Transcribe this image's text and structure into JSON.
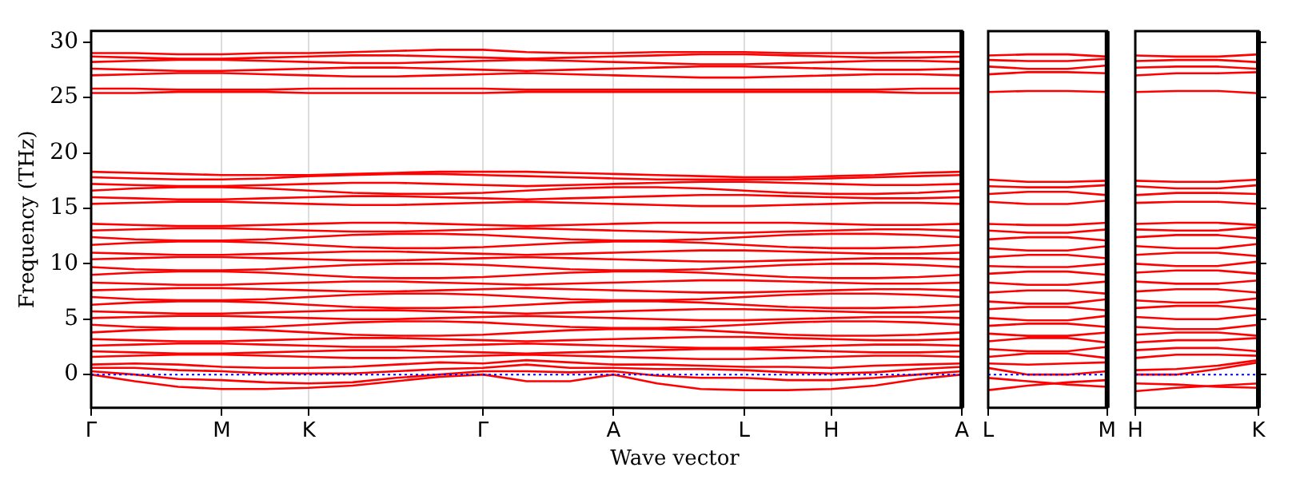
{
  "chart_data": [
    {
      "type": "line",
      "ylabel": "Frequency (THz)",
      "xlabel": "Wave vector",
      "grid": "x",
      "categories": [
        "Γ",
        null,
        null,
        "M",
        null,
        "K",
        null,
        null,
        null,
        "Γ",
        null,
        null,
        "A",
        null,
        null,
        "L",
        null,
        "H",
        null,
        null,
        "A"
      ],
      "ylim": [
        -3,
        31
      ],
      "yticks": [
        0,
        5,
        10,
        15,
        20,
        25,
        30
      ],
      "ref_lines": [
        {
          "axis": "y",
          "value": 0,
          "color": "#0000ff",
          "line_style": "dotted"
        }
      ],
      "series": [
        {
          "color": "#ff0000",
          "values": [
            0,
            -0.6,
            -1.1,
            -1.3,
            -1.3,
            -1.2,
            -1.0,
            -0.6,
            -0.2,
            0,
            -0.6,
            -0.6,
            0,
            -0.8,
            -1.3,
            -1.4,
            -1.4,
            -1.3,
            -1.0,
            -0.4,
            0
          ]
        },
        {
          "color": "#ff0000",
          "values": [
            0.3,
            0,
            -0.4,
            -0.5,
            -0.7,
            -0.8,
            -0.7,
            -0.3,
            0,
            0.3,
            0.3,
            0.2,
            0.3,
            -0.1,
            -0.3,
            -0.3,
            -0.5,
            -0.5,
            -0.3,
            0,
            0.3
          ]
        },
        {
          "color": "#ff0000",
          "values": [
            0.6,
            0.6,
            0.4,
            0.3,
            0.1,
            0.1,
            0.1,
            0.3,
            0.5,
            0.6,
            0.9,
            0.6,
            0.6,
            0.5,
            0.5,
            0.4,
            0.2,
            0.1,
            0.2,
            0.5,
            0.7
          ]
        },
        {
          "color": "#ff0000",
          "values": [
            0.9,
            1.0,
            0.9,
            0.7,
            0.6,
            0.6,
            0.7,
            0.9,
            1.1,
            1.0,
            1.3,
            1.1,
            0.9,
            0.9,
            0.8,
            0.7,
            0.7,
            0.6,
            0.8,
            0.9,
            1.0
          ]
        },
        {
          "color": "#ff0000",
          "values": [
            1.6,
            1.7,
            1.8,
            1.8,
            1.7,
            1.6,
            1.5,
            1.5,
            1.6,
            1.7,
            1.8,
            1.7,
            1.6,
            1.5,
            1.4,
            1.4,
            1.5,
            1.6,
            1.7,
            1.7,
            1.6
          ]
        },
        {
          "color": "#ff0000",
          "values": [
            2.1,
            2.0,
            1.9,
            1.9,
            2.0,
            2.1,
            2.2,
            2.2,
            2.1,
            2.0,
            1.9,
            2.0,
            2.1,
            2.2,
            2.3,
            2.3,
            2.2,
            2.1,
            2.0,
            2.0,
            2.1
          ]
        },
        {
          "color": "#ff0000",
          "values": [
            2.6,
            2.7,
            2.8,
            2.8,
            2.7,
            2.6,
            2.5,
            2.5,
            2.6,
            2.7,
            2.8,
            2.7,
            2.6,
            2.5,
            2.4,
            2.4,
            2.5,
            2.6,
            2.7,
            2.7,
            2.6
          ]
        },
        {
          "color": "#ff0000",
          "values": [
            3.2,
            3.1,
            3.0,
            3.0,
            3.1,
            3.2,
            3.3,
            3.3,
            3.2,
            3.1,
            3.0,
            3.1,
            3.2,
            3.3,
            3.4,
            3.4,
            3.3,
            3.2,
            3.1,
            3.1,
            3.2
          ]
        },
        {
          "color": "#ff0000",
          "values": [
            3.8,
            4.0,
            4.1,
            4.1,
            4.0,
            3.8,
            3.6,
            3.5,
            3.5,
            3.6,
            3.8,
            4.0,
            4.1,
            4.1,
            4.0,
            3.8,
            3.6,
            3.5,
            3.5,
            3.6,
            3.8
          ]
        },
        {
          "color": "#ff0000",
          "values": [
            4.5,
            4.3,
            4.2,
            4.2,
            4.3,
            4.5,
            4.7,
            4.8,
            4.8,
            4.7,
            4.5,
            4.3,
            4.2,
            4.2,
            4.3,
            4.5,
            4.7,
            4.8,
            4.8,
            4.7,
            4.5
          ]
        },
        {
          "color": "#ff0000",
          "values": [
            5.1,
            5.2,
            5.3,
            5.3,
            5.2,
            5.1,
            5.0,
            5.0,
            5.1,
            5.2,
            5.3,
            5.2,
            5.1,
            5.0,
            4.9,
            4.9,
            5.0,
            5.1,
            5.2,
            5.2,
            5.1
          ]
        },
        {
          "color": "#ff0000",
          "values": [
            5.7,
            5.6,
            5.5,
            5.5,
            5.6,
            5.7,
            5.8,
            5.8,
            5.7,
            5.6,
            5.5,
            5.6,
            5.7,
            5.8,
            5.9,
            5.9,
            5.8,
            5.7,
            5.6,
            5.6,
            5.7
          ]
        },
        {
          "color": "#ff0000",
          "values": [
            6.3,
            6.5,
            6.6,
            6.6,
            6.5,
            6.3,
            6.1,
            6.0,
            6.0,
            6.1,
            6.3,
            6.5,
            6.6,
            6.6,
            6.5,
            6.3,
            6.1,
            6.0,
            6.0,
            6.1,
            6.3
          ]
        },
        {
          "color": "#ff0000",
          "values": [
            7.0,
            6.8,
            6.7,
            6.7,
            6.8,
            7.0,
            7.2,
            7.3,
            7.3,
            7.2,
            7.0,
            6.8,
            6.7,
            6.7,
            6.8,
            7.0,
            7.2,
            7.3,
            7.3,
            7.2,
            7.0
          ]
        },
        {
          "color": "#ff0000",
          "values": [
            7.6,
            7.7,
            7.8,
            7.8,
            7.7,
            7.6,
            7.5,
            7.5,
            7.6,
            7.7,
            7.8,
            7.7,
            7.6,
            7.5,
            7.4,
            7.4,
            7.5,
            7.6,
            7.7,
            7.7,
            7.6
          ]
        },
        {
          "color": "#ff0000",
          "values": [
            8.3,
            8.2,
            8.1,
            8.1,
            8.2,
            8.3,
            8.4,
            8.4,
            8.3,
            8.2,
            8.1,
            8.2,
            8.3,
            8.4,
            8.5,
            8.5,
            8.4,
            8.3,
            8.2,
            8.2,
            8.3
          ]
        },
        {
          "color": "#ff0000",
          "values": [
            9.0,
            9.2,
            9.3,
            9.3,
            9.2,
            9.0,
            8.8,
            8.7,
            8.7,
            8.8,
            9.0,
            9.2,
            9.3,
            9.3,
            9.2,
            9.0,
            8.8,
            8.7,
            8.7,
            8.8,
            9.0
          ]
        },
        {
          "color": "#ff0000",
          "values": [
            9.7,
            9.5,
            9.4,
            9.4,
            9.5,
            9.7,
            9.9,
            10.0,
            10.0,
            9.9,
            9.7,
            9.5,
            9.4,
            9.4,
            9.5,
            9.7,
            9.9,
            10.0,
            10.0,
            9.9,
            9.7
          ]
        },
        {
          "color": "#ff0000",
          "values": [
            10.4,
            10.5,
            10.6,
            10.6,
            10.5,
            10.4,
            10.3,
            10.3,
            10.4,
            10.5,
            10.6,
            10.5,
            10.4,
            10.3,
            10.2,
            10.2,
            10.3,
            10.4,
            10.5,
            10.5,
            10.4
          ]
        },
        {
          "color": "#ff0000",
          "values": [
            11.0,
            10.9,
            10.8,
            10.8,
            10.9,
            11.0,
            11.1,
            11.1,
            11.0,
            10.9,
            10.8,
            10.9,
            11.0,
            11.1,
            11.2,
            11.2,
            11.1,
            11.0,
            10.9,
            10.9,
            11.0
          ]
        },
        {
          "color": "#ff0000",
          "values": [
            11.7,
            11.9,
            12.0,
            12.0,
            11.9,
            11.7,
            11.5,
            11.4,
            11.4,
            11.5,
            11.7,
            11.9,
            12.0,
            12.0,
            11.9,
            11.7,
            11.5,
            11.4,
            11.4,
            11.5,
            11.7
          ]
        },
        {
          "color": "#ff0000",
          "values": [
            12.4,
            12.2,
            12.1,
            12.1,
            12.2,
            12.4,
            12.6,
            12.7,
            12.7,
            12.6,
            12.4,
            12.2,
            12.1,
            12.1,
            12.2,
            12.4,
            12.6,
            12.7,
            12.7,
            12.6,
            12.4
          ]
        },
        {
          "color": "#ff0000",
          "values": [
            13.0,
            13.1,
            13.2,
            13.2,
            13.1,
            13.0,
            12.9,
            12.9,
            13.0,
            13.1,
            13.2,
            13.1,
            13.0,
            12.9,
            12.8,
            12.8,
            12.9,
            13.0,
            13.1,
            13.1,
            13.0
          ]
        },
        {
          "color": "#ff0000",
          "values": [
            13.6,
            13.5,
            13.4,
            13.4,
            13.5,
            13.6,
            13.7,
            13.7,
            13.6,
            13.5,
            13.4,
            13.5,
            13.6,
            13.7,
            13.7,
            13.7,
            13.7,
            13.6,
            13.5,
            13.5,
            13.6
          ]
        },
        {
          "color": "#ff0000",
          "values": [
            15.4,
            15.5,
            15.6,
            15.6,
            15.5,
            15.4,
            15.3,
            15.3,
            15.4,
            15.5,
            15.6,
            15.5,
            15.4,
            15.3,
            15.2,
            15.2,
            15.3,
            15.4,
            15.5,
            15.5,
            15.4
          ]
        },
        {
          "color": "#ff0000",
          "values": [
            16.0,
            15.9,
            15.8,
            15.8,
            15.9,
            16.0,
            16.1,
            16.1,
            16.0,
            15.9,
            15.8,
            15.9,
            16.0,
            16.1,
            16.2,
            16.2,
            16.1,
            16.0,
            15.9,
            15.9,
            16.0
          ]
        },
        {
          "color": "#ff0000",
          "values": [
            16.6,
            16.8,
            16.9,
            16.9,
            16.8,
            16.6,
            16.4,
            16.3,
            16.3,
            16.4,
            16.6,
            16.8,
            16.9,
            16.9,
            16.8,
            16.6,
            16.4,
            16.3,
            16.3,
            16.4,
            16.6
          ]
        },
        {
          "color": "#ff0000",
          "values": [
            17.2,
            17.1,
            17.0,
            17.0,
            17.1,
            17.2,
            17.3,
            17.3,
            17.2,
            17.1,
            17.0,
            17.1,
            17.2,
            17.3,
            17.4,
            17.4,
            17.3,
            17.2,
            17.1,
            17.1,
            17.2
          ]
        },
        {
          "color": "#ff0000",
          "values": [
            17.8,
            17.7,
            17.6,
            17.6,
            17.7,
            17.9,
            18.0,
            18.1,
            18.1,
            18.0,
            17.9,
            17.8,
            17.7,
            17.6,
            17.6,
            17.6,
            17.6,
            17.7,
            17.8,
            17.9,
            18.0
          ]
        },
        {
          "color": "#ff0000",
          "values": [
            18.3,
            18.2,
            18.1,
            18.0,
            18.0,
            18.0,
            18.1,
            18.2,
            18.3,
            18.3,
            18.3,
            18.2,
            18.1,
            18.0,
            17.9,
            17.8,
            17.8,
            17.9,
            18.0,
            18.2,
            18.3
          ]
        },
        {
          "color": "#ff0000",
          "values": [
            25.4,
            25.4,
            25.5,
            25.5,
            25.5,
            25.4,
            25.4,
            25.4,
            25.4,
            25.4,
            25.5,
            25.5,
            25.5,
            25.5,
            25.5,
            25.5,
            25.5,
            25.5,
            25.5,
            25.4,
            25.4
          ]
        },
        {
          "color": "#ff0000",
          "values": [
            25.8,
            25.8,
            25.7,
            25.7,
            25.7,
            25.8,
            25.8,
            25.8,
            25.8,
            25.8,
            25.7,
            25.7,
            25.7,
            25.7,
            25.7,
            25.7,
            25.7,
            25.7,
            25.7,
            25.8,
            25.8
          ]
        },
        {
          "color": "#ff0000",
          "values": [
            27.0,
            27.1,
            27.2,
            27.2,
            27.1,
            27.0,
            26.9,
            26.9,
            27.0,
            27.1,
            27.2,
            27.1,
            27.0,
            26.9,
            26.8,
            26.8,
            26.9,
            27.0,
            27.1,
            27.1,
            27.0
          ]
        },
        {
          "color": "#ff0000",
          "values": [
            27.6,
            27.5,
            27.4,
            27.4,
            27.5,
            27.6,
            27.7,
            27.7,
            27.6,
            27.5,
            27.4,
            27.5,
            27.6,
            27.7,
            27.8,
            27.8,
            27.7,
            27.6,
            27.5,
            27.5,
            27.6
          ]
        },
        {
          "color": "#ff0000",
          "values": [
            28.2,
            28.3,
            28.4,
            28.4,
            28.3,
            28.2,
            28.1,
            28.1,
            28.2,
            28.3,
            28.4,
            28.3,
            28.2,
            28.1,
            28.0,
            28.0,
            28.1,
            28.2,
            28.3,
            28.3,
            28.2
          ]
        },
        {
          "color": "#ff0000",
          "values": [
            28.7,
            28.6,
            28.5,
            28.5,
            28.6,
            28.7,
            28.8,
            28.8,
            28.7,
            28.6,
            28.5,
            28.6,
            28.7,
            28.8,
            28.9,
            28.9,
            28.8,
            28.7,
            28.6,
            28.6,
            28.7
          ]
        },
        {
          "color": "#ff0000",
          "values": [
            29.0,
            29.0,
            28.9,
            28.9,
            29.0,
            29.0,
            29.1,
            29.2,
            29.3,
            29.3,
            29.1,
            29.0,
            29.0,
            29.1,
            29.1,
            29.1,
            29.0,
            29.0,
            29.0,
            29.1,
            29.1
          ]
        }
      ]
    },
    {
      "type": "line",
      "tick_labels": "x",
      "categories": [
        "L",
        null,
        null,
        "M"
      ],
      "ylim": [
        -3,
        31
      ],
      "yticks": [
        0,
        5,
        10,
        15,
        20,
        25,
        30
      ],
      "ref_lines": [
        {
          "axis": "y",
          "value": 0,
          "color": "#0000ff",
          "line_style": "dotted"
        }
      ],
      "series": [
        {
          "color": "#ff0000",
          "values": [
            -1.4,
            -1.0,
            -0.7,
            -0.5
          ]
        },
        {
          "color": "#ff0000",
          "values": [
            -0.3,
            -0.6,
            -0.9,
            -1.1
          ]
        },
        {
          "color": "#ff0000",
          "values": [
            0.6,
            0,
            0,
            0.3
          ]
        },
        {
          "color": "#ff0000",
          "values": [
            1.0,
            0.9,
            1.0,
            1.1
          ]
        },
        {
          "color": "#ff0000",
          "values": [
            1.6,
            1.9,
            1.9,
            1.5
          ]
        },
        {
          "color": "#ff0000",
          "values": [
            2.3,
            2.1,
            2.1,
            2.5
          ]
        },
        {
          "color": "#ff0000",
          "values": [
            3.0,
            3.3,
            3.3,
            2.9
          ]
        },
        {
          "color": "#ff0000",
          "values": [
            3.7,
            3.5,
            3.5,
            3.8
          ]
        },
        {
          "color": "#ff0000",
          "values": [
            4.4,
            4.6,
            4.6,
            4.3
          ]
        },
        {
          "color": "#ff0000",
          "values": [
            5.1,
            4.9,
            4.9,
            5.3
          ]
        },
        {
          "color": "#ff0000",
          "values": [
            5.9,
            6.1,
            6.1,
            5.8
          ]
        },
        {
          "color": "#ff0000",
          "values": [
            6.6,
            6.4,
            6.4,
            6.8
          ]
        },
        {
          "color": "#ff0000",
          "values": [
            7.4,
            7.6,
            7.6,
            7.3
          ]
        },
        {
          "color": "#ff0000",
          "values": [
            8.3,
            8.1,
            8.1,
            8.4
          ]
        },
        {
          "color": "#ff0000",
          "values": [
            9.1,
            9.3,
            9.3,
            9.0
          ]
        },
        {
          "color": "#ff0000",
          "values": [
            9.8,
            9.7,
            9.7,
            10.0
          ]
        },
        {
          "color": "#ff0000",
          "values": [
            10.6,
            10.8,
            10.8,
            10.5
          ]
        },
        {
          "color": "#ff0000",
          "values": [
            11.4,
            11.2,
            11.2,
            11.6
          ]
        },
        {
          "color": "#ff0000",
          "values": [
            12.2,
            12.4,
            12.4,
            12.1
          ]
        },
        {
          "color": "#ff0000",
          "values": [
            13.0,
            12.8,
            12.8,
            13.1
          ]
        },
        {
          "color": "#ff0000",
          "values": [
            13.6,
            13.5,
            13.5,
            13.7
          ]
        },
        {
          "color": "#ff0000",
          "values": [
            15.6,
            15.4,
            15.4,
            15.7
          ]
        },
        {
          "color": "#ff0000",
          "values": [
            16.3,
            16.5,
            16.5,
            16.2
          ]
        },
        {
          "color": "#ff0000",
          "values": [
            17.0,
            16.9,
            16.9,
            17.1
          ]
        },
        {
          "color": "#ff0000",
          "values": [
            17.6,
            17.4,
            17.4,
            17.5
          ]
        },
        {
          "color": "#ff0000",
          "values": [
            25.5,
            25.6,
            25.6,
            25.5
          ]
        },
        {
          "color": "#ff0000",
          "values": [
            27.1,
            27.3,
            27.3,
            27.2
          ]
        },
        {
          "color": "#ff0000",
          "values": [
            27.8,
            27.6,
            27.6,
            27.9
          ]
        },
        {
          "color": "#ff0000",
          "values": [
            28.4,
            28.3,
            28.3,
            28.5
          ]
        },
        {
          "color": "#ff0000",
          "values": [
            28.8,
            28.9,
            28.9,
            28.7
          ]
        }
      ]
    },
    {
      "type": "line",
      "tick_labels": "x",
      "categories": [
        "H",
        null,
        null,
        "K"
      ],
      "ylim": [
        -3,
        31
      ],
      "yticks": [
        0,
        5,
        10,
        15,
        20,
        25,
        30
      ],
      "ref_lines": [
        {
          "axis": "y",
          "value": 0,
          "color": "#0000ff",
          "line_style": "dotted"
        }
      ],
      "series": [
        {
          "color": "#ff0000",
          "values": [
            -1.5,
            -1.2,
            -1.0,
            -0.8
          ]
        },
        {
          "color": "#ff0000",
          "values": [
            -0.8,
            -0.9,
            -1.1,
            -1.2
          ]
        },
        {
          "color": "#ff0000",
          "values": [
            0,
            0,
            0.5,
            1.1
          ]
        },
        {
          "color": "#ff0000",
          "values": [
            0.4,
            0.5,
            0.8,
            1.3
          ]
        },
        {
          "color": "#ff0000",
          "values": [
            1.5,
            1.8,
            1.8,
            1.7
          ]
        },
        {
          "color": "#ff0000",
          "values": [
            2.2,
            2.4,
            2.4,
            2.1
          ]
        },
        {
          "color": "#ff0000",
          "values": [
            2.9,
            3.1,
            3.1,
            3.3
          ]
        },
        {
          "color": "#ff0000",
          "values": [
            3.6,
            3.8,
            3.8,
            3.5
          ]
        },
        {
          "color": "#ff0000",
          "values": [
            4.3,
            4.1,
            4.1,
            4.5
          ]
        },
        {
          "color": "#ff0000",
          "values": [
            5.2,
            5.0,
            5.0,
            5.4
          ]
        },
        {
          "color": "#ff0000",
          "values": [
            6.0,
            6.2,
            6.2,
            5.9
          ]
        },
        {
          "color": "#ff0000",
          "values": [
            6.7,
            6.5,
            6.5,
            6.9
          ]
        },
        {
          "color": "#ff0000",
          "values": [
            7.5,
            7.7,
            7.7,
            7.4
          ]
        },
        {
          "color": "#ff0000",
          "values": [
            8.4,
            8.2,
            8.2,
            8.5
          ]
        },
        {
          "color": "#ff0000",
          "values": [
            9.2,
            9.4,
            9.4,
            9.1
          ]
        },
        {
          "color": "#ff0000",
          "values": [
            10.0,
            9.8,
            9.8,
            10.2
          ]
        },
        {
          "color": "#ff0000",
          "values": [
            10.8,
            11.0,
            11.0,
            10.7
          ]
        },
        {
          "color": "#ff0000",
          "values": [
            11.6,
            11.4,
            11.4,
            11.8
          ]
        },
        {
          "color": "#ff0000",
          "values": [
            12.4,
            12.6,
            12.6,
            12.3
          ]
        },
        {
          "color": "#ff0000",
          "values": [
            13.1,
            13.0,
            13.0,
            13.3
          ]
        },
        {
          "color": "#ff0000",
          "values": [
            13.6,
            13.7,
            13.7,
            13.5
          ]
        },
        {
          "color": "#ff0000",
          "values": [
            15.5,
            15.6,
            15.6,
            15.4
          ]
        },
        {
          "color": "#ff0000",
          "values": [
            16.2,
            16.4,
            16.4,
            16.3
          ]
        },
        {
          "color": "#ff0000",
          "values": [
            17.0,
            16.8,
            16.8,
            17.1
          ]
        },
        {
          "color": "#ff0000",
          "values": [
            17.5,
            17.4,
            17.4,
            17.6
          ]
        },
        {
          "color": "#ff0000",
          "values": [
            25.5,
            25.6,
            25.6,
            25.4
          ]
        },
        {
          "color": "#ff0000",
          "values": [
            27.0,
            27.2,
            27.2,
            27.3
          ]
        },
        {
          "color": "#ff0000",
          "values": [
            27.7,
            27.8,
            27.8,
            27.6
          ]
        },
        {
          "color": "#ff0000",
          "values": [
            28.3,
            28.4,
            28.4,
            28.2
          ]
        },
        {
          "color": "#ff0000",
          "values": [
            28.8,
            28.7,
            28.7,
            28.9
          ]
        }
      ]
    }
  ]
}
